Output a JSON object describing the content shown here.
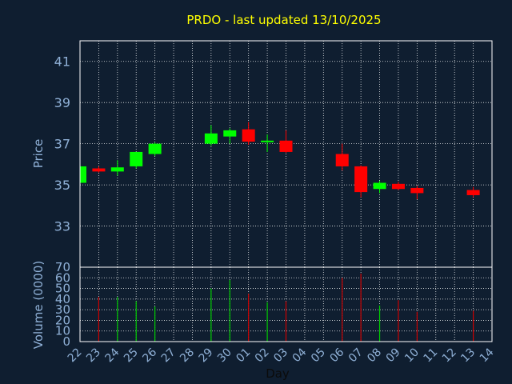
{
  "chart_data": {
    "type": "candlestick",
    "title": "PRDO - last updated 13/10/2025",
    "xlabel": "Day",
    "price_axis": {
      "label": "Price",
      "ylim": [
        31.0,
        42.0
      ],
      "ticks": [
        33,
        35,
        37,
        39,
        41
      ]
    },
    "volume_axis": {
      "label": "Volume (0000)",
      "ylim": [
        0,
        70
      ],
      "ticks": [
        0,
        10,
        20,
        30,
        40,
        50,
        60,
        70
      ]
    },
    "x_ticks": [
      "22",
      "23",
      "24",
      "25",
      "26",
      "27",
      "28",
      "29",
      "30",
      "01",
      "02",
      "03",
      "04",
      "05",
      "06",
      "07",
      "08",
      "09",
      "10",
      "11",
      "12",
      "13",
      "14"
    ],
    "grid": true,
    "colors": {
      "up": "#00ff00",
      "down": "#ff0000",
      "volume_up": "#00cc00",
      "volume_down": "#cc0000"
    },
    "candles": [
      {
        "day": "22",
        "open": 35.1,
        "high": 35.9,
        "low": 35.1,
        "close": 35.9,
        "volume": 0
      },
      {
        "day": "23",
        "open": 35.8,
        "high": 35.9,
        "low": 35.6,
        "close": 35.65,
        "volume": 42
      },
      {
        "day": "24",
        "open": 35.65,
        "high": 36.2,
        "low": 35.45,
        "close": 35.85,
        "volume": 42
      },
      {
        "day": "25",
        "open": 35.9,
        "high": 36.6,
        "low": 35.8,
        "close": 36.6,
        "volume": 38
      },
      {
        "day": "26",
        "open": 36.5,
        "high": 37.05,
        "low": 36.4,
        "close": 37.0,
        "volume": 33
      },
      {
        "day": "29",
        "open": 37.0,
        "high": 37.9,
        "low": 36.9,
        "close": 37.5,
        "volume": 50
      },
      {
        "day": "30",
        "open": 37.35,
        "high": 37.75,
        "low": 37.0,
        "close": 37.65,
        "volume": 58
      },
      {
        "day": "01",
        "open": 37.7,
        "high": 38.05,
        "low": 36.95,
        "close": 37.1,
        "volume": 45
      },
      {
        "day": "02",
        "open": 37.15,
        "high": 37.45,
        "low": 36.6,
        "close": 37.15,
        "volume": 37
      },
      {
        "day": "03",
        "open": 37.15,
        "high": 37.65,
        "low": 36.55,
        "close": 36.6,
        "volume": 38
      },
      {
        "day": "06",
        "open": 36.5,
        "high": 37.0,
        "low": 35.7,
        "close": 35.9,
        "volume": 60
      },
      {
        "day": "07",
        "open": 35.9,
        "high": 35.95,
        "low": 34.4,
        "close": 34.65,
        "volume": 64
      },
      {
        "day": "08",
        "open": 34.8,
        "high": 35.2,
        "low": 34.6,
        "close": 35.1,
        "volume": 34
      },
      {
        "day": "09",
        "open": 35.05,
        "high": 35.15,
        "low": 34.75,
        "close": 34.8,
        "volume": 39
      },
      {
        "day": "10",
        "open": 34.85,
        "high": 34.95,
        "low": 34.3,
        "close": 34.6,
        "volume": 28
      },
      {
        "day": "13",
        "open": 34.75,
        "high": 34.9,
        "low": 34.4,
        "close": 34.5,
        "volume": 29
      }
    ]
  }
}
